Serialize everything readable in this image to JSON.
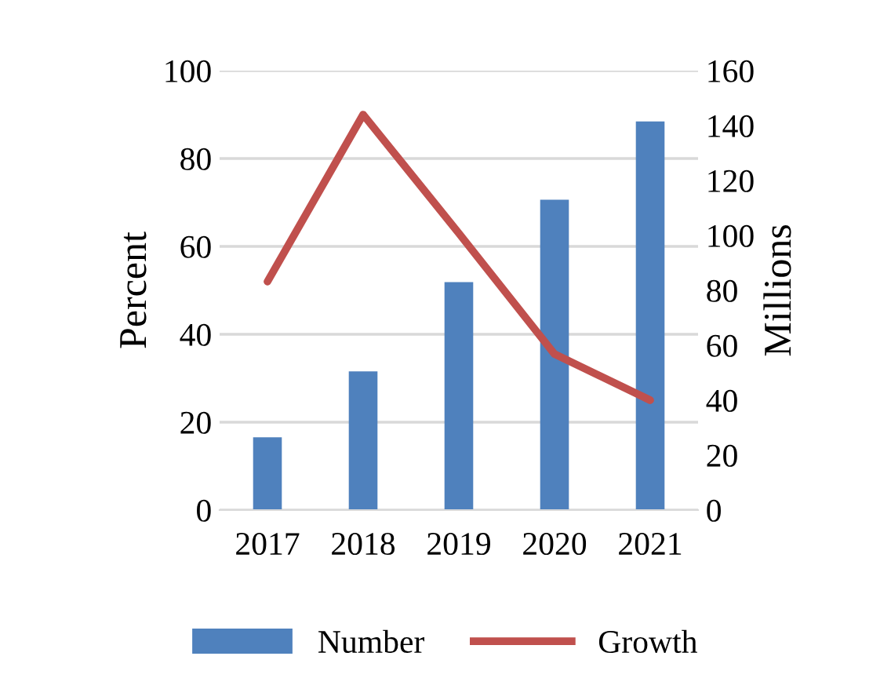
{
  "chart_data": {
    "type": "bar",
    "categories": [
      "2017",
      "2018",
      "2019",
      "2020",
      "2021"
    ],
    "series": [
      {
        "name": "Number",
        "axis": "y2",
        "color": "#4f81bd",
        "values": [
          26.5,
          50.5,
          83,
          113,
          141.5
        ]
      },
      {
        "name": "Growth",
        "type": "line",
        "axis": "y",
        "color": "#c0504d",
        "values": [
          52,
          90,
          63,
          35.5,
          25
        ]
      }
    ],
    "ylabel": "Percent",
    "y2label": "Millions",
    "ylim": [
      0,
      100
    ],
    "yticks": [
      0,
      20,
      40,
      60,
      80,
      100
    ],
    "y2lim": [
      0,
      160
    ],
    "y2ticks": [
      0,
      20,
      40,
      60,
      80,
      100,
      120,
      140,
      160
    ],
    "grid": "y",
    "legend": "bottom",
    "marker": "none"
  }
}
